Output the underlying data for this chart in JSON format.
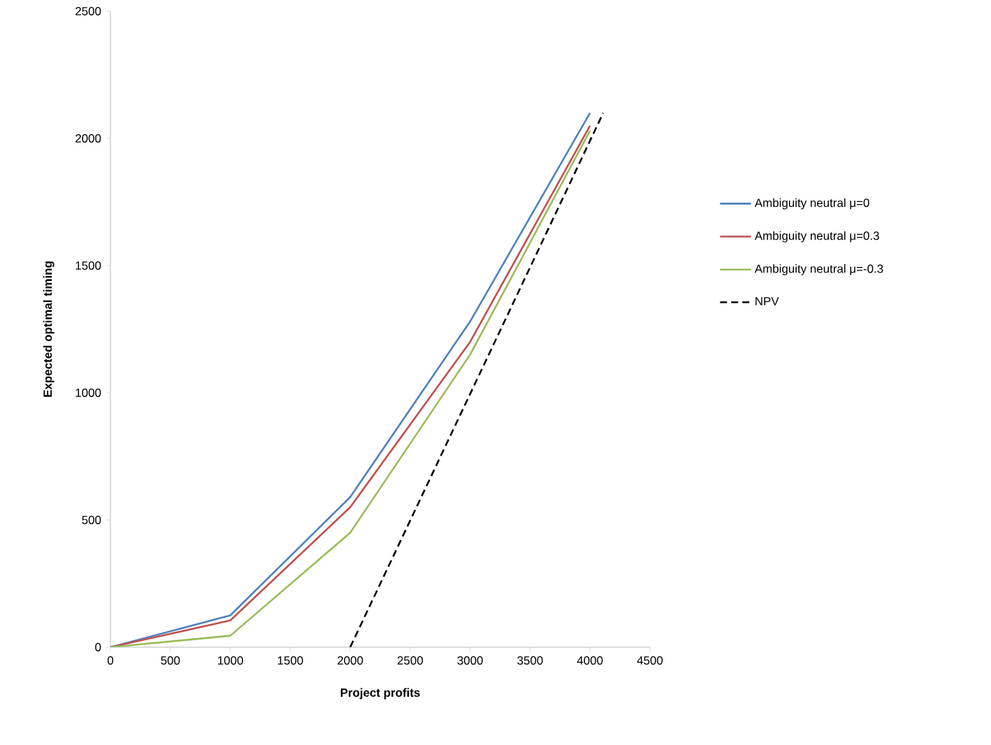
{
  "chart_data": {
    "type": "line",
    "xlabel": "Project profits",
    "ylabel": "Expected optimal timing",
    "xlim": [
      0,
      4500
    ],
    "ylim": [
      0,
      2500
    ],
    "xticks": [
      0,
      500,
      1000,
      1500,
      2000,
      2500,
      3000,
      3500,
      4000,
      4500
    ],
    "yticks": [
      0,
      500,
      1000,
      1500,
      2000,
      2500
    ],
    "legend": "right",
    "marker": "none",
    "series": [
      {
        "name": "Ambiguity neutral μ=0",
        "color": "#4f81bd",
        "x": [
          0,
          1000,
          2000,
          3000,
          4000
        ],
        "values": [
          0,
          125,
          590,
          1280,
          2100
        ]
      },
      {
        "name": "Ambiguity neutral μ=0.3",
        "color": "#c0504d",
        "x": [
          0,
          1000,
          2000,
          3000,
          4000
        ],
        "values": [
          0,
          105,
          550,
          1200,
          2050
        ]
      },
      {
        "name": "Ambiguity neutral μ=-0.3",
        "color": "#9bbb59",
        "x": [
          0,
          1000,
          2000,
          3000,
          4000
        ],
        "values": [
          0,
          45,
          450,
          1150,
          2030
        ]
      },
      {
        "name": "NPV",
        "color": "#000000",
        "line_style": "dashed",
        "x": [
          2000,
          4110
        ],
        "values": [
          0,
          2100
        ]
      }
    ]
  }
}
